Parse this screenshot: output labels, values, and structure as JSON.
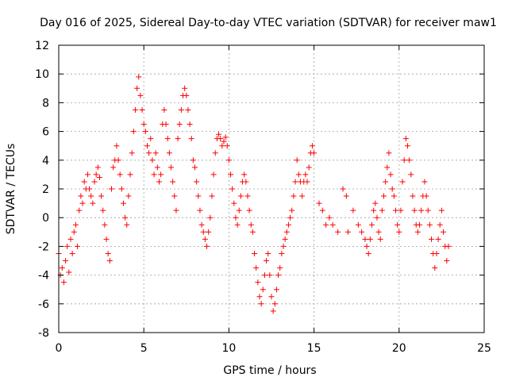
{
  "chart_data": {
    "type": "scatter",
    "title": "Day 016 of 2025, Sidereal Day-to-day VTEC variation (SDTVAR) for receiver maw1",
    "xlabel": "GPS time / hours",
    "ylabel": "SDTVAR / TECUs",
    "xlim": [
      0,
      25
    ],
    "ylim": [
      -8,
      12
    ],
    "xticks": [
      0,
      5,
      10,
      15,
      20,
      25
    ],
    "yticks": [
      -8,
      -6,
      -4,
      -2,
      0,
      2,
      4,
      6,
      8,
      10,
      12
    ],
    "grid": true,
    "marker": "+",
    "series": [
      {
        "name": "SDTVAR",
        "color": "#ff0000",
        "points": [
          [
            0.0,
            -2.5
          ],
          [
            0.1,
            -4.0
          ],
          [
            0.2,
            -3.5
          ],
          [
            0.3,
            -4.5
          ],
          [
            0.4,
            -3.0
          ],
          [
            0.5,
            -2.0
          ],
          [
            0.6,
            -3.8
          ],
          [
            0.7,
            -1.5
          ],
          [
            0.8,
            -2.5
          ],
          [
            0.9,
            -1.0
          ],
          [
            1.0,
            -0.5
          ],
          [
            1.1,
            -2.0
          ],
          [
            1.2,
            0.5
          ],
          [
            1.3,
            1.5
          ],
          [
            1.4,
            1.0
          ],
          [
            1.5,
            2.5
          ],
          [
            1.6,
            2.0
          ],
          [
            1.7,
            3.0
          ],
          [
            1.8,
            2.0
          ],
          [
            1.9,
            1.5
          ],
          [
            2.0,
            1.0
          ],
          [
            2.1,
            2.5
          ],
          [
            2.2,
            3.0
          ],
          [
            2.3,
            3.5
          ],
          [
            2.4,
            2.8
          ],
          [
            2.5,
            1.5
          ],
          [
            2.6,
            0.5
          ],
          [
            2.7,
            -0.5
          ],
          [
            2.8,
            -1.5
          ],
          [
            2.9,
            -2.5
          ],
          [
            3.0,
            -3.0
          ],
          [
            3.1,
            2.0
          ],
          [
            3.2,
            3.5
          ],
          [
            3.3,
            4.0
          ],
          [
            3.4,
            5.0
          ],
          [
            3.5,
            4.0
          ],
          [
            3.6,
            3.0
          ],
          [
            3.7,
            2.0
          ],
          [
            3.8,
            1.0
          ],
          [
            3.9,
            0.0
          ],
          [
            4.0,
            -0.5
          ],
          [
            4.1,
            1.5
          ],
          [
            4.2,
            3.0
          ],
          [
            4.3,
            4.5
          ],
          [
            4.4,
            6.0
          ],
          [
            4.5,
            7.5
          ],
          [
            4.6,
            9.0
          ],
          [
            4.7,
            9.8
          ],
          [
            4.8,
            8.5
          ],
          [
            4.9,
            7.5
          ],
          [
            5.0,
            6.5
          ],
          [
            5.1,
            6.0
          ],
          [
            5.2,
            5.0
          ],
          [
            5.3,
            4.5
          ],
          [
            5.4,
            5.5
          ],
          [
            5.5,
            4.0
          ],
          [
            5.6,
            3.0
          ],
          [
            5.7,
            4.5
          ],
          [
            5.8,
            3.5
          ],
          [
            5.9,
            2.5
          ],
          [
            6.0,
            3.0
          ],
          [
            6.1,
            6.5
          ],
          [
            6.2,
            7.5
          ],
          [
            6.3,
            6.5
          ],
          [
            6.4,
            5.5
          ],
          [
            6.5,
            4.5
          ],
          [
            6.6,
            3.5
          ],
          [
            6.7,
            2.5
          ],
          [
            6.8,
            1.5
          ],
          [
            6.9,
            0.5
          ],
          [
            7.0,
            5.5
          ],
          [
            7.1,
            6.5
          ],
          [
            7.2,
            7.5
          ],
          [
            7.3,
            8.5
          ],
          [
            7.4,
            9.0
          ],
          [
            7.5,
            8.5
          ],
          [
            7.6,
            7.5
          ],
          [
            7.7,
            6.5
          ],
          [
            7.8,
            5.5
          ],
          [
            7.9,
            4.0
          ],
          [
            8.0,
            3.5
          ],
          [
            8.1,
            2.5
          ],
          [
            8.2,
            1.5
          ],
          [
            8.3,
            0.5
          ],
          [
            8.4,
            -0.5
          ],
          [
            8.5,
            -1.0
          ],
          [
            8.6,
            -1.5
          ],
          [
            8.7,
            -2.0
          ],
          [
            8.8,
            -1.0
          ],
          [
            8.9,
            0.0
          ],
          [
            9.0,
            1.5
          ],
          [
            9.1,
            3.0
          ],
          [
            9.2,
            4.5
          ],
          [
            9.3,
            5.5
          ],
          [
            9.4,
            5.8
          ],
          [
            9.5,
            5.5
          ],
          [
            9.6,
            5.0
          ],
          [
            9.7,
            5.3
          ],
          [
            9.8,
            5.6
          ],
          [
            9.9,
            5.0
          ],
          [
            10.0,
            4.0
          ],
          [
            10.1,
            3.0
          ],
          [
            10.2,
            2.0
          ],
          [
            10.3,
            1.0
          ],
          [
            10.4,
            0.0
          ],
          [
            10.5,
            -0.5
          ],
          [
            10.6,
            0.5
          ],
          [
            10.7,
            1.5
          ],
          [
            10.8,
            2.5
          ],
          [
            10.9,
            3.0
          ],
          [
            11.0,
            2.5
          ],
          [
            11.1,
            1.5
          ],
          [
            11.2,
            0.5
          ],
          [
            11.3,
            -0.5
          ],
          [
            11.4,
            -1.0
          ],
          [
            11.5,
            -2.5
          ],
          [
            11.6,
            -3.5
          ],
          [
            11.7,
            -4.5
          ],
          [
            11.8,
            -5.5
          ],
          [
            11.9,
            -6.0
          ],
          [
            12.0,
            -5.0
          ],
          [
            12.1,
            -4.0
          ],
          [
            12.2,
            -3.0
          ],
          [
            12.3,
            -2.5
          ],
          [
            12.4,
            -4.0
          ],
          [
            12.5,
            -5.5
          ],
          [
            12.6,
            -6.5
          ],
          [
            12.7,
            -6.0
          ],
          [
            12.8,
            -5.0
          ],
          [
            12.9,
            -4.0
          ],
          [
            13.0,
            -3.5
          ],
          [
            13.1,
            -2.5
          ],
          [
            13.2,
            -2.0
          ],
          [
            13.3,
            -1.5
          ],
          [
            13.4,
            -1.0
          ],
          [
            13.5,
            -0.5
          ],
          [
            13.6,
            0.0
          ],
          [
            13.7,
            0.5
          ],
          [
            13.8,
            1.5
          ],
          [
            13.9,
            2.5
          ],
          [
            14.0,
            4.0
          ],
          [
            14.1,
            3.0
          ],
          [
            14.2,
            2.5
          ],
          [
            14.3,
            1.5
          ],
          [
            14.4,
            2.5
          ],
          [
            14.5,
            3.0
          ],
          [
            14.6,
            2.5
          ],
          [
            14.7,
            3.5
          ],
          [
            14.8,
            4.5
          ],
          [
            14.9,
            5.0
          ],
          [
            15.0,
            4.5
          ],
          [
            15.3,
            1.0
          ],
          [
            15.5,
            0.5
          ],
          [
            15.7,
            -0.5
          ],
          [
            15.9,
            0.0
          ],
          [
            16.1,
            -0.5
          ],
          [
            16.4,
            -1.0
          ],
          [
            16.7,
            2.0
          ],
          [
            16.9,
            1.5
          ],
          [
            17.0,
            -1.0
          ],
          [
            17.3,
            0.5
          ],
          [
            17.6,
            -0.5
          ],
          [
            17.8,
            -1.0
          ],
          [
            18.0,
            -1.5
          ],
          [
            18.1,
            -2.0
          ],
          [
            18.2,
            -2.5
          ],
          [
            18.3,
            -1.5
          ],
          [
            18.4,
            -0.5
          ],
          [
            18.5,
            0.5
          ],
          [
            18.6,
            1.0
          ],
          [
            18.7,
            0.0
          ],
          [
            18.8,
            -1.0
          ],
          [
            18.9,
            -1.5
          ],
          [
            19.0,
            0.5
          ],
          [
            19.1,
            1.5
          ],
          [
            19.2,
            2.5
          ],
          [
            19.3,
            3.5
          ],
          [
            19.4,
            4.5
          ],
          [
            19.5,
            3.0
          ],
          [
            19.6,
            2.0
          ],
          [
            19.7,
            1.5
          ],
          [
            19.8,
            0.5
          ],
          [
            19.9,
            -0.5
          ],
          [
            20.0,
            -1.0
          ],
          [
            20.1,
            0.5
          ],
          [
            20.2,
            2.5
          ],
          [
            20.3,
            4.0
          ],
          [
            20.4,
            5.5
          ],
          [
            20.5,
            5.0
          ],
          [
            20.6,
            4.0
          ],
          [
            20.7,
            3.0
          ],
          [
            20.8,
            1.5
          ],
          [
            20.9,
            0.5
          ],
          [
            21.0,
            -0.5
          ],
          [
            21.1,
            -1.0
          ],
          [
            21.2,
            -0.5
          ],
          [
            21.3,
            0.5
          ],
          [
            21.4,
            1.5
          ],
          [
            21.5,
            2.5
          ],
          [
            21.6,
            1.5
          ],
          [
            21.7,
            0.5
          ],
          [
            21.8,
            -0.5
          ],
          [
            21.9,
            -1.5
          ],
          [
            22.0,
            -2.5
          ],
          [
            22.1,
            -3.5
          ],
          [
            22.2,
            -2.5
          ],
          [
            22.3,
            -1.5
          ],
          [
            22.4,
            -0.5
          ],
          [
            22.5,
            0.5
          ],
          [
            22.6,
            -1.0
          ],
          [
            22.7,
            -2.0
          ],
          [
            22.8,
            -3.0
          ],
          [
            22.9,
            -2.0
          ]
        ]
      }
    ]
  }
}
